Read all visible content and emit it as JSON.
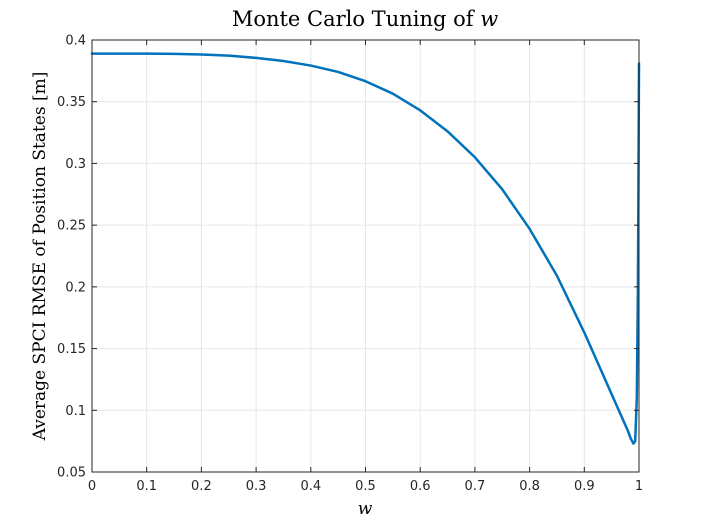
{
  "chart_data": {
    "type": "line",
    "title_text": "Monte Carlo Tuning of ",
    "title_var": "w",
    "xlabel": "w",
    "ylabel": "Average SPCI RMSE of Position States [m]",
    "xlim": [
      0,
      1
    ],
    "ylim": [
      0.05,
      0.4
    ],
    "xticks": [
      "0",
      "0.1",
      "0.2",
      "0.3",
      "0.4",
      "0.5",
      "0.6",
      "0.7",
      "0.8",
      "0.9",
      "1"
    ],
    "yticks": [
      "0.05",
      "0.1",
      "0.15",
      "0.2",
      "0.25",
      "0.3",
      "0.35",
      "0.4"
    ],
    "grid": true,
    "legend": "none",
    "series": [
      {
        "color": "#0072BD",
        "x": [
          0,
          0.05,
          0.1,
          0.15,
          0.2,
          0.25,
          0.3,
          0.35,
          0.4,
          0.45,
          0.5,
          0.55,
          0.6,
          0.65,
          0.7,
          0.75,
          0.8,
          0.85,
          0.9,
          0.93,
          0.95,
          0.97,
          0.98,
          0.985,
          0.99,
          0.993,
          0.996,
          0.998,
          1.0
        ],
        "y": [
          0.389,
          0.389,
          0.389,
          0.3888,
          0.3883,
          0.3873,
          0.3855,
          0.383,
          0.3793,
          0.3741,
          0.3666,
          0.3565,
          0.343,
          0.326,
          0.305,
          0.279,
          0.247,
          0.209,
          0.163,
          0.133,
          0.113,
          0.093,
          0.083,
          0.077,
          0.073,
          0.075,
          0.11,
          0.2,
          0.381
        ]
      }
    ]
  }
}
